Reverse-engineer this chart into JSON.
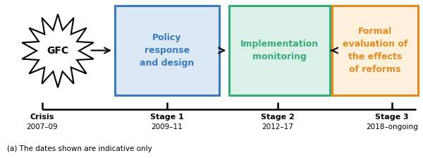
{
  "footnote": "(a) The dates shown are indicative only",
  "gfc_label": "GFC",
  "boxes": [
    {
      "label": "Policy\nresponse\nand design",
      "border_color": "#3a7abf",
      "fill_color": "#dce9f5",
      "text_color": "#3a7abf"
    },
    {
      "label": "Implementation\nmonitoring",
      "border_color": "#3aab7a",
      "fill_color": "#daf0e8",
      "text_color": "#3aab7a"
    },
    {
      "label": "Formal\nevaluation of\nthe effects\nof reforms",
      "border_color": "#e88a1a",
      "fill_color": "#fdf0dc",
      "text_color": "#e88a1a"
    }
  ],
  "timeline_labels": [
    "Crisis",
    "Stage 1",
    "Stage 2",
    "Stage 3"
  ],
  "timeline_dates": [
    "2007–09",
    "2009–11",
    "2012–17",
    "2018–ongoing"
  ],
  "background_color": "#ffffff"
}
